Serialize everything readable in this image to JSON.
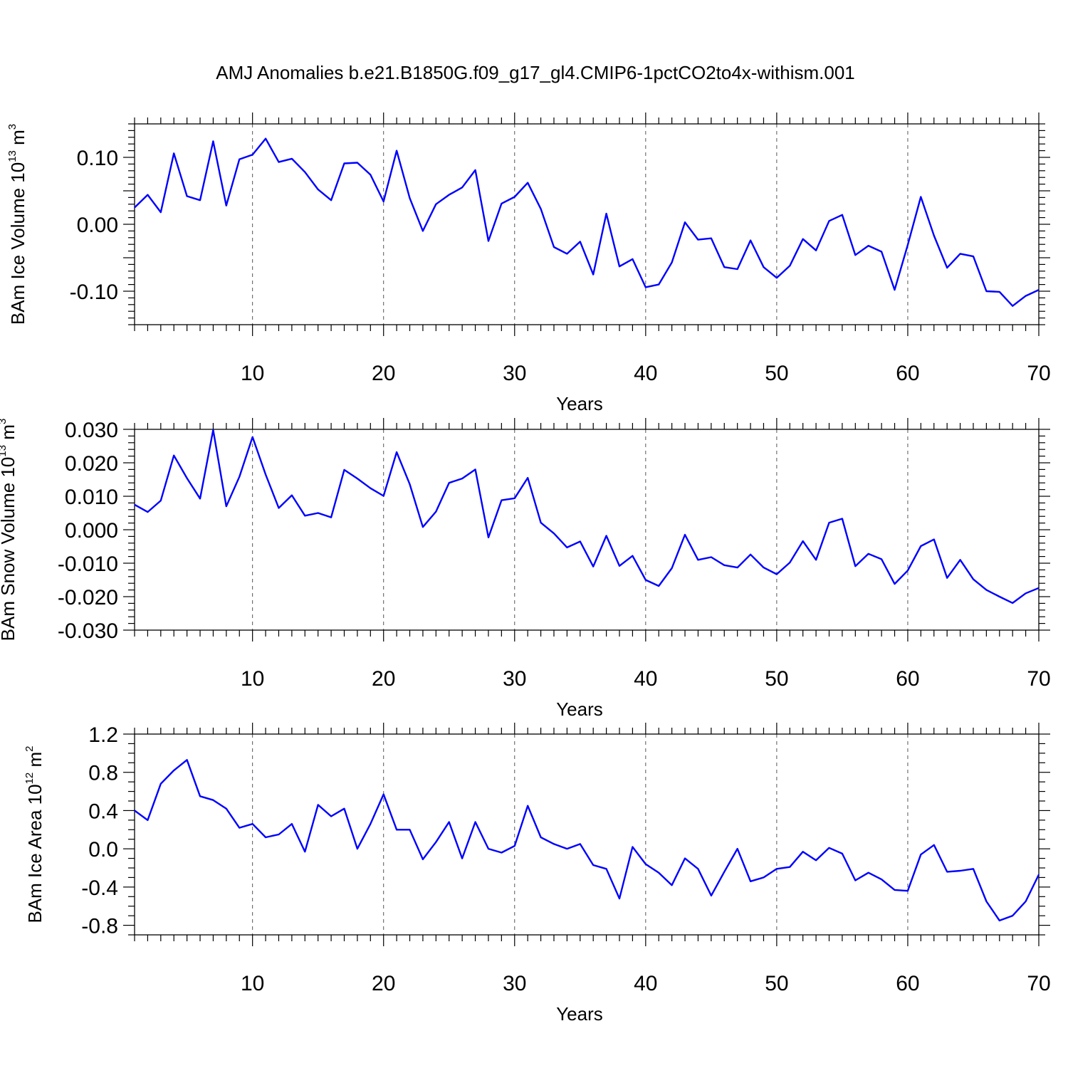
{
  "title": "AMJ Anomalies b.e21.B1850G.f09_g17_gl4.CMIP6-1pctCO2to4x-withism.001",
  "colors": {
    "line": "#0000ff",
    "axis": "#000000",
    "grid": "#555555"
  },
  "chart_data": [
    {
      "type": "line",
      "title": "AMJ Anomalies b.e21.B1850G.f09_g17_gl4.CMIP6-1pctCO2to4x-withism.001",
      "xlabel": "Years",
      "ylabel": {
        "base": "BAm Ice Volume 10",
        "exp": "13",
        "unit": " m",
        "unit_exp": "3"
      },
      "xlim": [
        1,
        70
      ],
      "ylim": [
        -0.15,
        0.15
      ],
      "xticks": [
        10,
        20,
        30,
        40,
        50,
        60,
        70
      ],
      "yticks": [
        -0.1,
        0.0,
        0.1
      ],
      "ytick_labels": [
        "-0.10",
        "0.00",
        "0.10"
      ],
      "ymajor_marks": [
        -0.1,
        -0.05,
        0.0,
        0.05,
        0.1
      ],
      "yminor_step": 0.01,
      "grid": "x dashed",
      "series": [
        {
          "name": "BAm Ice Volume",
          "x_start": 1,
          "values": [
            0.025,
            0.044,
            0.018,
            0.106,
            0.042,
            0.036,
            0.124,
            0.028,
            0.097,
            0.104,
            0.128,
            0.093,
            0.098,
            0.078,
            0.052,
            0.036,
            0.091,
            0.092,
            0.074,
            0.034,
            0.11,
            0.039,
            -0.01,
            0.03,
            0.044,
            0.055,
            0.081,
            -0.025,
            0.031,
            0.041,
            0.062,
            0.023,
            -0.034,
            -0.044,
            -0.026,
            -0.075,
            0.016,
            -0.063,
            -0.052,
            -0.094,
            -0.09,
            -0.057,
            0.003,
            -0.023,
            -0.021,
            -0.064,
            -0.067,
            -0.024,
            -0.064,
            -0.08,
            -0.062,
            -0.022,
            -0.039,
            0.005,
            0.014,
            -0.046,
            -0.032,
            -0.041,
            -0.098,
            -0.031,
            0.041,
            -0.017,
            -0.065,
            -0.044,
            -0.048,
            -0.1,
            -0.101,
            -0.122,
            -0.107,
            -0.098
          ]
        }
      ]
    },
    {
      "type": "line",
      "xlabel": "Years",
      "ylabel": {
        "base": "BAm Snow Volume 10",
        "exp": "13",
        "unit": " m",
        "unit_exp": "3"
      },
      "xlim": [
        1,
        70
      ],
      "ylim": [
        -0.03,
        0.03
      ],
      "xticks": [
        10,
        20,
        30,
        40,
        50,
        60,
        70
      ],
      "yticks": [
        -0.03,
        -0.02,
        -0.01,
        0.0,
        0.01,
        0.02,
        0.03
      ],
      "ytick_labels": [
        "-0.030",
        "-0.020",
        "-0.010",
        "0.000",
        "0.010",
        "0.020",
        "0.030"
      ],
      "ymajor_marks": [
        -0.03,
        -0.02,
        -0.01,
        0.0,
        0.01,
        0.02,
        0.03
      ],
      "yminor_step": 0.002,
      "grid": "x dashed",
      "series": [
        {
          "name": "BAm Snow Volume",
          "x_start": 1,
          "values": [
            0.0075,
            0.0053,
            0.0087,
            0.0222,
            0.0154,
            0.0093,
            0.0298,
            0.007,
            0.0158,
            0.0277,
            0.0165,
            0.0065,
            0.0103,
            0.0042,
            0.005,
            0.0037,
            0.0179,
            0.0153,
            0.0124,
            0.0101,
            0.0232,
            0.0136,
            0.0008,
            0.0054,
            0.014,
            0.0153,
            0.018,
            -0.0023,
            0.0088,
            0.0094,
            0.0155,
            0.0021,
            -0.0011,
            -0.0053,
            -0.0035,
            -0.011,
            -0.0018,
            -0.0108,
            -0.0078,
            -0.015,
            -0.0168,
            -0.0115,
            -0.0015,
            -0.009,
            -0.0082,
            -0.0106,
            -0.0113,
            -0.0074,
            -0.0113,
            -0.0133,
            -0.0098,
            -0.0034,
            -0.009,
            0.0021,
            0.0033,
            -0.0109,
            -0.0072,
            -0.0088,
            -0.0162,
            -0.0122,
            -0.0049,
            -0.0029,
            -0.0144,
            -0.009,
            -0.0148,
            -0.018,
            -0.02,
            -0.0219,
            -0.019,
            -0.0174
          ]
        }
      ]
    },
    {
      "type": "line",
      "xlabel": "Years",
      "ylabel": {
        "base": "BAm Ice Area 10",
        "exp": "12",
        "unit": " m",
        "unit_exp": "2"
      },
      "xlim": [
        1,
        70
      ],
      "ylim": [
        -0.9,
        1.2
      ],
      "xticks": [
        10,
        20,
        30,
        40,
        50,
        60,
        70
      ],
      "yticks": [
        -0.8,
        -0.4,
        0.0,
        0.4,
        0.8,
        1.2
      ],
      "ytick_labels": [
        "-0.8",
        "-0.4",
        "0.0",
        "0.4",
        "0.8",
        "1.2"
      ],
      "ymajor_marks": [
        -0.8,
        -0.4,
        0.0,
        0.4,
        0.8,
        1.2
      ],
      "yminor_step": 0.1,
      "grid": "x dashed",
      "series": [
        {
          "name": "BAm Ice Area",
          "x_start": 1,
          "values": [
            0.4,
            0.3,
            0.68,
            0.82,
            0.93,
            0.55,
            0.51,
            0.42,
            0.22,
            0.26,
            0.12,
            0.15,
            0.26,
            -0.03,
            0.46,
            0.34,
            0.42,
            0.0,
            0.26,
            0.57,
            0.2,
            0.2,
            -0.11,
            0.07,
            0.28,
            -0.1,
            0.28,
            0.0,
            -0.04,
            0.03,
            0.45,
            0.12,
            0.05,
            0.0,
            0.05,
            -0.17,
            -0.21,
            -0.52,
            0.02,
            -0.16,
            -0.25,
            -0.38,
            -0.1,
            -0.21,
            -0.49,
            -0.24,
            0.0,
            -0.34,
            -0.3,
            -0.21,
            -0.19,
            -0.03,
            -0.12,
            0.01,
            -0.05,
            -0.33,
            -0.25,
            -0.32,
            -0.43,
            -0.44,
            -0.06,
            0.04,
            -0.24,
            -0.23,
            -0.21,
            -0.55,
            -0.75,
            -0.7,
            -0.55,
            -0.27
          ]
        }
      ]
    }
  ]
}
